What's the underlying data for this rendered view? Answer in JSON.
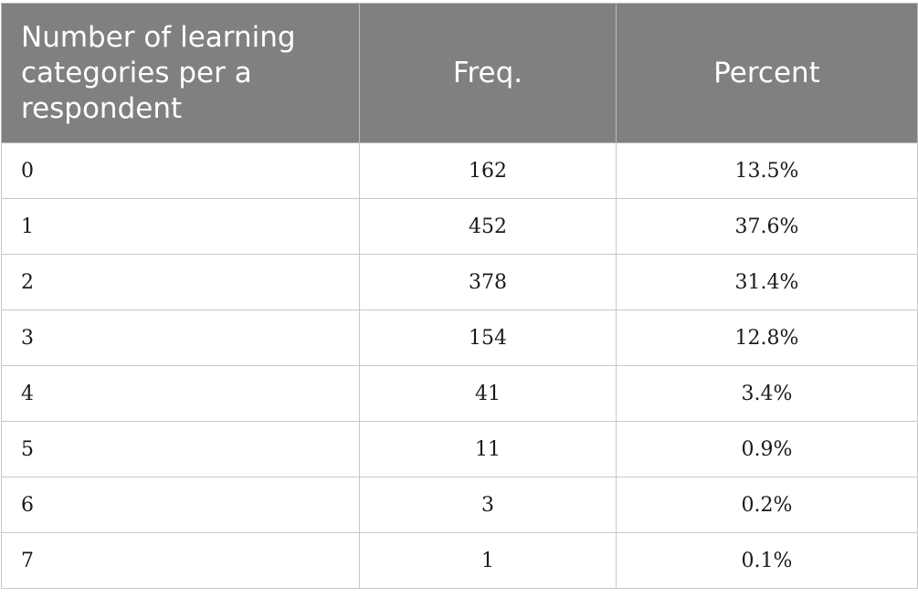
{
  "table": {
    "headers": {
      "category": "Number of learning categories per a respondent",
      "freq": "Freq.",
      "percent": "Percent"
    },
    "rows": [
      {
        "category": "0",
        "freq": "162",
        "percent": "13.5%"
      },
      {
        "category": "1",
        "freq": "452",
        "percent": "37.6%"
      },
      {
        "category": "2",
        "freq": "378",
        "percent": "31.4%"
      },
      {
        "category": "3",
        "freq": "154",
        "percent": "12.8%"
      },
      {
        "category": "4",
        "freq": "41",
        "percent": "3.4%"
      },
      {
        "category": "5",
        "freq": "11",
        "percent": "0.9%"
      },
      {
        "category": "6",
        "freq": "3",
        "percent": "0.2%"
      },
      {
        "category": "7",
        "freq": "1",
        "percent": "0.1%"
      }
    ]
  },
  "colors": {
    "header_bg": "#7f817f",
    "header_text": "#ffffff",
    "grid": "#c8c8c8"
  }
}
